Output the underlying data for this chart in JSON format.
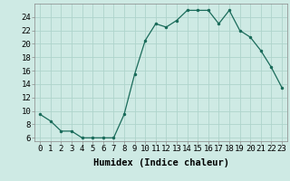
{
  "x": [
    0,
    1,
    2,
    3,
    4,
    5,
    6,
    7,
    8,
    9,
    10,
    11,
    12,
    13,
    14,
    15,
    16,
    17,
    18,
    19,
    20,
    21,
    22,
    23
  ],
  "y": [
    9.5,
    8.5,
    7.0,
    7.0,
    6.0,
    6.0,
    6.0,
    6.0,
    9.5,
    15.5,
    20.5,
    23.0,
    22.5,
    23.5,
    25.0,
    25.0,
    25.0,
    23.0,
    25.0,
    22.0,
    21.0,
    19.0,
    16.5,
    13.5
  ],
  "xlabel": "Humidex (Indice chaleur)",
  "ylabel_ticks": [
    6,
    8,
    10,
    12,
    14,
    16,
    18,
    20,
    22,
    24
  ],
  "ylim": [
    5.5,
    26.0
  ],
  "xlim": [
    -0.5,
    23.5
  ],
  "bg_color": "#ceeae4",
  "line_color": "#1a6b5a",
  "grid_color": "#aed4cc",
  "xlabel_fontsize": 7.5,
  "tick_fontsize": 6.5,
  "xlabel_fontweight": "bold"
}
